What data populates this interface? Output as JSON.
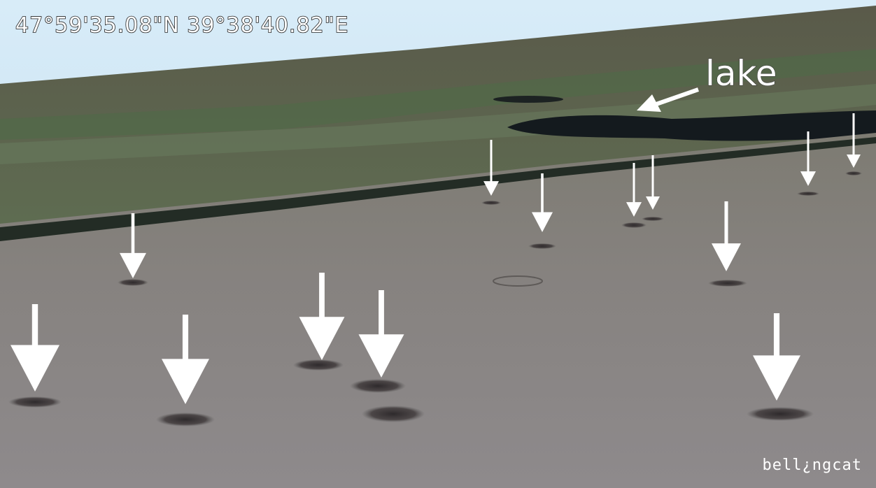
{
  "coordinates": "47°59'35.08\"N  39°38'40.82\"E",
  "annotation": "lake",
  "watermark": "bell¿ngcat"
}
